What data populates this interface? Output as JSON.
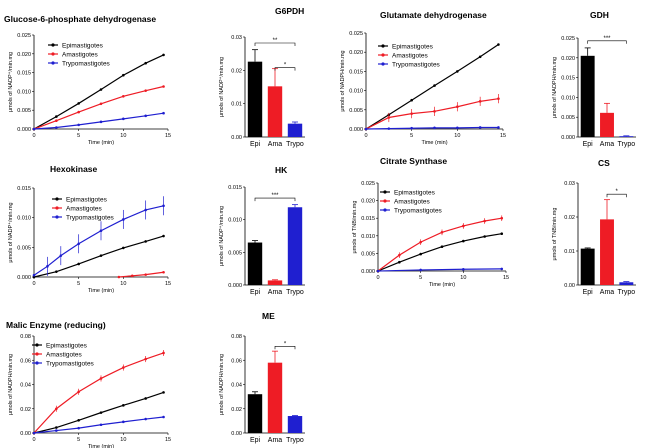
{
  "figure": {
    "series_colors": {
      "Epimastigotes": "#000000",
      "Amastigotes": "#ee1c25",
      "Trypomastigotes": "#1f1fd0"
    },
    "bar_colors": [
      "#000000",
      "#ee1c25",
      "#1f1fd0"
    ]
  },
  "chart_data": [
    {
      "id": "g6pdh-line",
      "type": "line",
      "title": "Glucose-6-phosphate dehydrogenase",
      "xlabel": "Time (min)",
      "ylabel": "μmols of NADP⁺/min.mg",
      "xlim": [
        0,
        15
      ],
      "ylim": [
        0,
        0.025
      ],
      "xticks": [
        0,
        5,
        10,
        15
      ],
      "xtick_labels": [
        "0",
        "5",
        "10",
        "15"
      ],
      "yticks": [
        0,
        0.005,
        0.01,
        0.015,
        0.02,
        0.025
      ],
      "ytick_labels": [
        "0.000",
        "0.005",
        "0.010",
        "0.015",
        "0.020",
        "0.025"
      ],
      "series": [
        {
          "name": "Epimastigotes",
          "points": [
            [
              0,
              0
            ],
            [
              2.5,
              0.0033
            ],
            [
              5,
              0.0068
            ],
            [
              7.5,
              0.0105
            ],
            [
              10,
              0.0143
            ],
            [
              12.5,
              0.0175
            ],
            [
              14.5,
              0.0197
            ]
          ]
        },
        {
          "name": "Amastigotes",
          "points": [
            [
              0,
              0
            ],
            [
              2.5,
              0.0022
            ],
            [
              5,
              0.0045
            ],
            [
              7.5,
              0.0067
            ],
            [
              10,
              0.0087
            ],
            [
              12.5,
              0.0102
            ],
            [
              14.5,
              0.0113
            ]
          ]
        },
        {
          "name": "Trypomastigotes",
          "points": [
            [
              0,
              0
            ],
            [
              2.5,
              0.0004
            ],
            [
              5,
              0.0011
            ],
            [
              7.5,
              0.0019
            ],
            [
              10,
              0.0027
            ],
            [
              12.5,
              0.0035
            ],
            [
              14.5,
              0.0042
            ]
          ]
        }
      ]
    },
    {
      "id": "g6pdh-bar",
      "type": "bar",
      "title": "G6PDH",
      "ylabel": "μmols of NADP⁺/min.mg",
      "categories": [
        "Epi",
        "Ama",
        "Trypo"
      ],
      "values": [
        0.0226,
        0.0152,
        0.004
      ],
      "errors": [
        0.0036,
        0.0053,
        0.0005
      ],
      "ylim": [
        0,
        0.03
      ],
      "yticks": [
        0,
        0.01,
        0.02,
        0.03
      ],
      "ytick_labels": [
        "0.00",
        "0.01",
        "0.02",
        "0.03"
      ],
      "significance": [
        {
          "from": 0,
          "to": 2,
          "label": "**",
          "y": 0.0282
        },
        {
          "from": 1,
          "to": 2,
          "label": "*",
          "y": 0.0208
        }
      ]
    },
    {
      "id": "gdh-line",
      "type": "line",
      "title": "Glutamate dehydrogenase",
      "xlabel": "Time (min)",
      "ylabel": "μmols of NADPH/min.mg",
      "xlim": [
        0,
        15
      ],
      "ylim": [
        0,
        0.025
      ],
      "xticks": [
        0,
        5,
        10,
        15
      ],
      "xtick_labels": [
        "0",
        "5",
        "10",
        "15"
      ],
      "yticks": [
        0,
        0.005,
        0.01,
        0.015,
        0.02,
        0.025
      ],
      "ytick_labels": [
        "0.000",
        "0.005",
        "0.010",
        "0.015",
        "0.020",
        "0.025"
      ],
      "series": [
        {
          "name": "Epimastigotes",
          "points": [
            [
              0,
              0
            ],
            [
              2.5,
              0.0037
            ],
            [
              5,
              0.0075
            ],
            [
              7.5,
              0.0113
            ],
            [
              10,
              0.015
            ],
            [
              12.5,
              0.0188
            ],
            [
              14.5,
              0.022
            ]
          ]
        },
        {
          "name": "Amastigotes",
          "points": [
            [
              0,
              0
            ],
            [
              2.5,
              0.003
            ],
            [
              5,
              0.004
            ],
            [
              7.5,
              0.0046
            ],
            [
              10,
              0.0058
            ],
            [
              12.5,
              0.0072
            ],
            [
              14.5,
              0.0079
            ]
          ],
          "error": 0.0012
        },
        {
          "name": "Trypomastigotes",
          "points": [
            [
              0,
              0
            ],
            [
              2.5,
              0.0001
            ],
            [
              5,
              0.0002
            ],
            [
              7.5,
              0.0003
            ],
            [
              10,
              0.0003
            ],
            [
              12.5,
              0.0004
            ],
            [
              14.5,
              0.0004
            ]
          ]
        }
      ]
    },
    {
      "id": "gdh-bar",
      "type": "bar",
      "title": "GDH",
      "ylabel": "μmols of NADPH/min.mg",
      "categories": [
        "Epi",
        "Ama",
        "Trypo"
      ],
      "values": [
        0.0205,
        0.0061,
        0.0002
      ],
      "errors": [
        0.002,
        0.0024,
        0.0001
      ],
      "ylim": [
        0,
        0.025
      ],
      "yticks": [
        0,
        0.005,
        0.01,
        0.015,
        0.02,
        0.025
      ],
      "ytick_labels": [
        "0.000",
        "0.005",
        "0.010",
        "0.015",
        "0.020",
        "0.025"
      ],
      "significance": [
        {
          "from": 0,
          "to": 2,
          "label": "***",
          "y": 0.0243
        }
      ]
    },
    {
      "id": "hk-line",
      "type": "line",
      "title": "Hexokinase",
      "xlabel": "Time (min)",
      "ylabel": "μmols of NADP⁺/min.mg",
      "xlim": [
        0,
        15
      ],
      "ylim": [
        0,
        0.015
      ],
      "xticks": [
        0,
        5,
        10,
        15
      ],
      "xtick_labels": [
        "0",
        "5",
        "10",
        "15"
      ],
      "yticks": [
        0,
        0.005,
        0.01,
        0.015
      ],
      "ytick_labels": [
        "0.000",
        "0.005",
        "0.010",
        "0.015"
      ],
      "series": [
        {
          "name": "Epimastigotes",
          "points": [
            [
              0,
              0
            ],
            [
              2.5,
              0.0009
            ],
            [
              5,
              0.0022
            ],
            [
              7.5,
              0.0036
            ],
            [
              10,
              0.0049
            ],
            [
              12.5,
              0.006
            ],
            [
              14.5,
              0.0069
            ]
          ]
        },
        {
          "name": "Amastigotes",
          "points": [
            [
              9.5,
              0
            ],
            [
              11,
              0.0002
            ],
            [
              12.5,
              0.0004
            ],
            [
              14.5,
              0.0008
            ]
          ]
        },
        {
          "name": "Trypomastigotes",
          "points": [
            [
              0,
              0.0003
            ],
            [
              1.5,
              0.0018
            ],
            [
              3,
              0.0036
            ],
            [
              5,
              0.0056
            ],
            [
              7.5,
              0.0078
            ],
            [
              10,
              0.0097
            ],
            [
              12.5,
              0.0113
            ],
            [
              14.5,
              0.012
            ]
          ],
          "error": 0.0016
        }
      ]
    },
    {
      "id": "hk-bar",
      "type": "bar",
      "title": "HK",
      "ylabel": "μmols of NADP⁺/min.mg",
      "categories": [
        "Epi",
        "Ama",
        "Trypo"
      ],
      "values": [
        0.0065,
        0.0007,
        0.0119
      ],
      "errors": [
        0.0003,
        0.0001,
        0.0004
      ],
      "ylim": [
        0,
        0.015
      ],
      "yticks": [
        0,
        0.005,
        0.01,
        0.015
      ],
      "ytick_labels": [
        "0.000",
        "0.005",
        "0.010",
        "0.015"
      ],
      "significance": [
        {
          "from": 0,
          "to": 2,
          "label": "***",
          "y": 0.0133
        }
      ]
    },
    {
      "id": "cs-line",
      "type": "line",
      "title": "Citrate Synthase",
      "xlabel": "Time (min)",
      "ylabel": "μmols of TNB/min.mg",
      "xlim": [
        0,
        15
      ],
      "ylim": [
        0,
        0.025
      ],
      "xticks": [
        0,
        5,
        10,
        15
      ],
      "xtick_labels": [
        "0",
        "5",
        "10",
        "15"
      ],
      "yticks": [
        0,
        0.005,
        0.01,
        0.015,
        0.02,
        0.025
      ],
      "ytick_labels": [
        "0.000",
        "0.005",
        "0.010",
        "0.015",
        "0.020",
        "0.025"
      ],
      "series": [
        {
          "name": "Epimastigotes",
          "points": [
            [
              0,
              0
            ],
            [
              2.5,
              0.0025
            ],
            [
              5,
              0.0048
            ],
            [
              7.5,
              0.0069
            ],
            [
              10,
              0.0085
            ],
            [
              12.5,
              0.0098
            ],
            [
              14.5,
              0.0106
            ]
          ]
        },
        {
          "name": "Amastigotes",
          "points": [
            [
              0,
              0
            ],
            [
              2.5,
              0.0045
            ],
            [
              5,
              0.0082
            ],
            [
              7.5,
              0.011
            ],
            [
              10,
              0.0128
            ],
            [
              12.5,
              0.0142
            ],
            [
              14.5,
              0.015
            ]
          ],
          "error": 0.0008
        },
        {
          "name": "Trypomastigotes",
          "points": [
            [
              0,
              0
            ],
            [
              5,
              0.0003
            ],
            [
              10,
              0.0005
            ],
            [
              14.5,
              0.0006
            ]
          ]
        }
      ]
    },
    {
      "id": "cs-bar",
      "type": "bar",
      "title": "CS",
      "ylabel": "μmols of TNB/min.mg",
      "categories": [
        "Epi",
        "Ama",
        "Trypo"
      ],
      "values": [
        0.0107,
        0.0193,
        0.0008
      ],
      "errors": [
        0.0002,
        0.0058,
        0.0002
      ],
      "ylim": [
        0,
        0.03
      ],
      "yticks": [
        0,
        0.01,
        0.02,
        0.03
      ],
      "ytick_labels": [
        "0.00",
        "0.01",
        "0.02",
        "0.03"
      ],
      "significance": [
        {
          "from": 1,
          "to": 2,
          "label": "*",
          "y": 0.0267
        }
      ]
    },
    {
      "id": "me-line",
      "type": "line",
      "title": "Malic Enzyme (reducing)",
      "xlabel": "Time (min)",
      "ylabel": "μmols of NADPH/min.mg",
      "xlim": [
        0,
        15
      ],
      "ylim": [
        0,
        0.08
      ],
      "xticks": [
        0,
        5,
        10,
        15
      ],
      "xtick_labels": [
        "0",
        "5",
        "10",
        "15"
      ],
      "yticks": [
        0,
        0.02,
        0.04,
        0.06,
        0.08
      ],
      "ytick_labels": [
        "0.00",
        "0.02",
        "0.04",
        "0.06",
        "0.08"
      ],
      "series": [
        {
          "name": "Epimastigotes",
          "points": [
            [
              0,
              0
            ],
            [
              2.5,
              0.0045
            ],
            [
              5,
              0.0105
            ],
            [
              7.5,
              0.0168
            ],
            [
              10,
              0.0228
            ],
            [
              12.5,
              0.0285
            ],
            [
              14.5,
              0.0335
            ]
          ]
        },
        {
          "name": "Amastigotes",
          "points": [
            [
              0,
              0
            ],
            [
              2.5,
              0.02
            ],
            [
              5,
              0.034
            ],
            [
              7.5,
              0.045
            ],
            [
              10,
              0.054
            ],
            [
              12.5,
              0.061
            ],
            [
              14.5,
              0.066
            ]
          ],
          "error": 0.0025
        },
        {
          "name": "Trypomastigotes",
          "points": [
            [
              0,
              0
            ],
            [
              2.5,
              0.002
            ],
            [
              5,
              0.004
            ],
            [
              7.5,
              0.0068
            ],
            [
              10,
              0.0092
            ],
            [
              12.5,
              0.0115
            ],
            [
              14.5,
              0.0132
            ]
          ]
        }
      ]
    },
    {
      "id": "me-bar",
      "type": "bar",
      "title": "ME",
      "ylabel": "μmols of NADPH/min.mg",
      "categories": [
        "Epi",
        "Ama",
        "Trypo"
      ],
      "values": [
        0.032,
        0.058,
        0.014
      ],
      "errors": [
        0.002,
        0.0095,
        0.0004
      ],
      "ylim": [
        0,
        0.08
      ],
      "yticks": [
        0,
        0.02,
        0.04,
        0.06,
        0.08
      ],
      "ytick_labels": [
        "0.00",
        "0.02",
        "0.04",
        "0.06",
        "0.08"
      ],
      "significance": [
        {
          "from": 1,
          "to": 2,
          "label": "*",
          "y": 0.0715
        }
      ]
    }
  ]
}
